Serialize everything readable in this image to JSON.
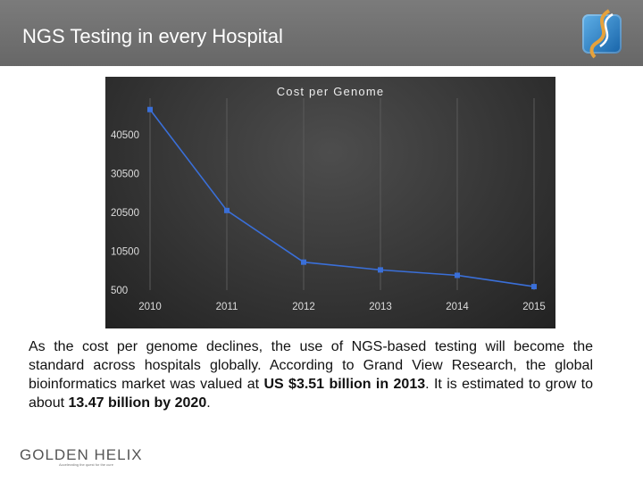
{
  "slide": {
    "title": "NGS Testing in every Hospital"
  },
  "chart_data": {
    "type": "line",
    "title": "Cost per Genome",
    "x": [
      "2010",
      "2011",
      "2012",
      "2013",
      "2014",
      "2015"
    ],
    "yticks": [
      "40500",
      "30500",
      "20500",
      "10500",
      "500"
    ],
    "ylim": [
      500,
      40500
    ],
    "series": [
      {
        "values": [
          47000,
          21000,
          7700,
          5700,
          4300,
          1400
        ]
      }
    ],
    "grid": "vertical",
    "colors": {
      "line": "#3a6fd8",
      "marker": "#3a6fd8",
      "axis_text": "#dddddd",
      "grid": "#5a5a5a"
    }
  },
  "paragraph": {
    "part1": "As the cost per genome declines, the use of NGS-based testing will become the standard across hospitals globally. According to Grand View Research, the global bioinformatics market was valued at ",
    "bold1": "US $3.51 billion in 2013",
    "part2": ". It is estimated to grow to about ",
    "bold2": "13.47 billion by 2020",
    "part3": "."
  },
  "footer": {
    "logo_name": "GOLDEN HELIX",
    "tagline": "Accelerating the quest for the cure"
  }
}
